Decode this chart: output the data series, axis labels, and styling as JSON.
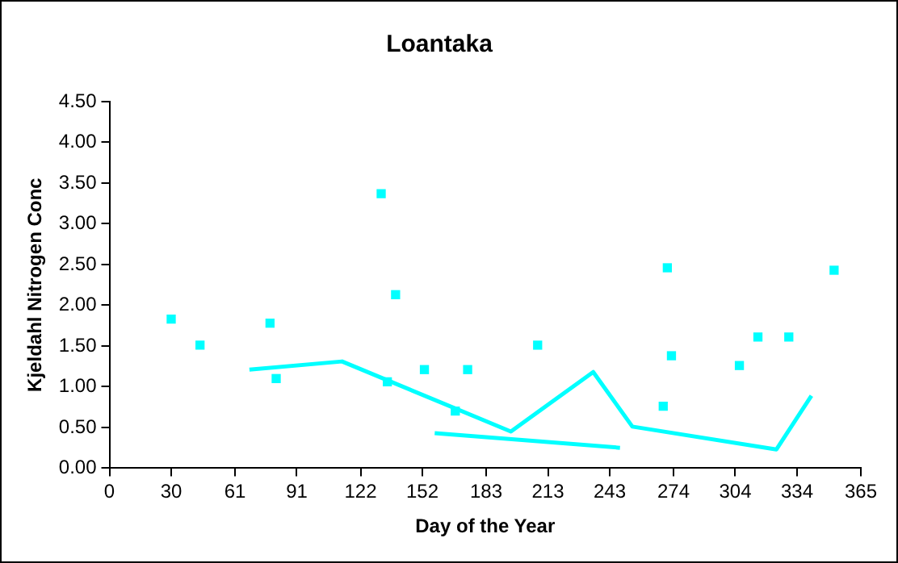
{
  "chart_data": {
    "type": "scatter",
    "title": "Loantaka",
    "xlabel": "Day of the Year",
    "ylabel": "Kjeldahl Nitrogen Conc",
    "xlim": [
      0,
      365
    ],
    "xticks": [
      0,
      30,
      61,
      91,
      122,
      152,
      183,
      213,
      243,
      274,
      304,
      334,
      365
    ],
    "ylim": [
      0,
      4.5
    ],
    "yticks": [
      {
        "value": 0,
        "label": "0.00"
      },
      {
        "value": 0.5,
        "label": "0.50"
      },
      {
        "value": 1,
        "label": "1.00"
      },
      {
        "value": 1.5,
        "label": "1.50"
      },
      {
        "value": 2,
        "label": "2.00"
      },
      {
        "value": 2.5,
        "label": "2.50"
      },
      {
        "value": 3,
        "label": "3.00"
      },
      {
        "value": 3.5,
        "label": "3.50"
      },
      {
        "value": 4,
        "label": "4.00"
      },
      {
        "value": 4.5,
        "label": "4.50"
      }
    ],
    "grid": false,
    "legend": false,
    "marker": "square",
    "series": [
      {
        "type": "scatter",
        "color": "#00ffff",
        "x": [
          30,
          44,
          78,
          81,
          132,
          135,
          139,
          153,
          168,
          174,
          208,
          269,
          271,
          273,
          306,
          315,
          330,
          352
        ],
        "values": [
          1.83,
          1.51,
          1.78,
          1.1,
          3.37,
          1.06,
          2.13,
          1.21,
          0.7,
          1.21,
          1.51,
          0.76,
          2.46,
          1.38,
          1.26,
          1.61,
          1.61,
          2.43
        ]
      },
      {
        "type": "line",
        "color": "#00ffff",
        "marker": "none",
        "x": [
          68,
          113,
          195,
          235,
          254,
          324,
          341
        ],
        "values": [
          1.21,
          1.31,
          0.45,
          1.18,
          0.51,
          0.23,
          0.89
        ]
      },
      {
        "type": "line",
        "color": "#00ffff",
        "marker": "none",
        "x": [
          158,
          248
        ],
        "values": [
          0.43,
          0.25
        ]
      }
    ]
  }
}
